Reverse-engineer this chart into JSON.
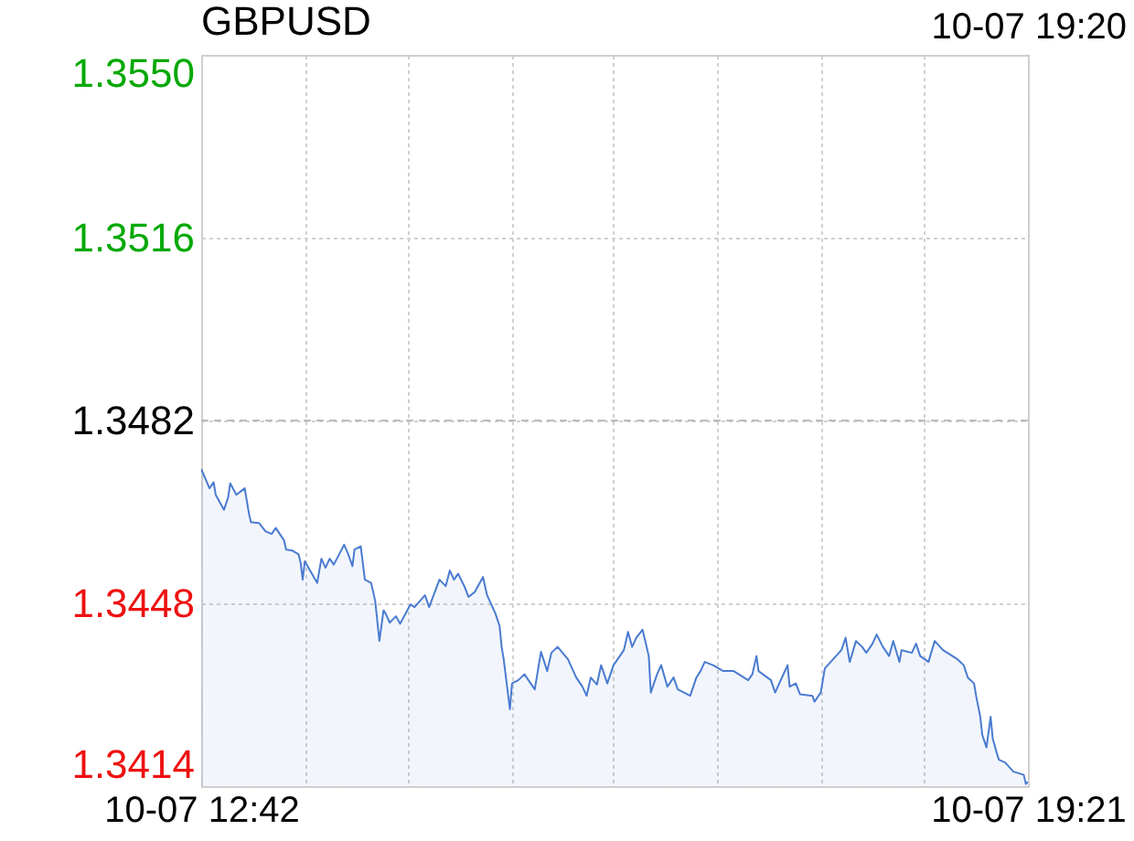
{
  "chart_data": {
    "type": "area",
    "title": "GBPUSD",
    "annotations": [
      "10-07 19:20"
    ],
    "x": [
      "--10-07T12:42",
      "--10-07T12:46",
      "--10-07T12:48",
      "--10-07T12:49",
      "--10-07T12:53",
      "--10-07T12:55",
      "--10-07T12:56",
      "--10-07T12:59",
      "--10-07T13:03",
      "--10-07T13:05",
      "--10-07T13:06",
      "--10-07T13:10",
      "--10-07T13:13",
      "--10-07T13:16",
      "--10-07T13:18",
      "--10-07T13:22",
      "--10-07T13:23",
      "--10-07T13:26",
      "--10-07T13:29",
      "--10-07T13:30",
      "--10-07T13:31",
      "--10-07T13:32",
      "--10-07T13:38",
      "--10-07T13:40",
      "--10-07T13:42",
      "--10-07T13:44",
      "--10-07T13:46",
      "--10-07T13:51",
      "--10-07T13:53",
      "--10-07T13:55",
      "--10-07T13:56",
      "--10-07T13:59",
      "--10-07T14:01",
      "--10-07T14:04",
      "--10-07T14:06",
      "--10-07T14:08",
      "--10-07T14:10",
      "--10-07T14:11",
      "--10-07T14:13",
      "--10-07T14:16",
      "--10-07T14:18",
      "--10-07T14:23",
      "--10-07T14:25",
      "--10-07T14:30",
      "--10-07T14:32",
      "--10-07T14:37",
      "--10-07T14:40",
      "--10-07T14:42",
      "--10-07T14:44",
      "--10-07T14:46",
      "--10-07T14:49",
      "--10-07T14:51",
      "--10-07T14:54",
      "--10-07T14:58",
      "--10-07T15:00",
      "--10-07T15:02",
      "--10-07T15:04",
      "--10-07T15:06",
      "--10-07T15:07",
      "--10-07T15:08",
      "--10-07T15:11",
      "--10-07T15:12",
      "--10-07T15:15",
      "--10-07T15:18",
      "--10-07T15:23",
      "--10-07T15:26",
      "--10-07T15:29",
      "--10-07T15:31",
      "--10-07T15:34",
      "--10-07T15:39",
      "--10-07T15:43",
      "--10-07T15:46",
      "--10-07T15:48",
      "--10-07T15:50",
      "--10-07T15:53",
      "--10-07T15:55",
      "--10-07T15:58",
      "--10-07T16:01",
      "--10-07T16:03",
      "--10-07T16:06",
      "--10-07T16:08",
      "--10-07T16:10",
      "--10-07T16:12",
      "--10-07T16:15",
      "--10-07T16:17",
      "--10-07T16:18",
      "--10-07T16:19",
      "--10-07T16:22",
      "--10-07T16:24",
      "--10-07T16:27",
      "--10-07T16:30",
      "--10-07T16:32",
      "--10-07T16:38",
      "--10-07T16:41",
      "--10-07T16:43",
      "--10-07T16:45",
      "--10-07T16:49",
      "--10-07T16:54",
      "--10-07T16:59",
      "--10-07T17:06",
      "--10-07T17:08",
      "--10-07T17:10",
      "--10-07T17:11",
      "--10-07T17:17",
      "--10-07T17:19",
      "--10-07T17:25",
      "--10-07T17:26",
      "--10-07T17:29",
      "--10-07T17:31",
      "--10-07T17:37",
      "--10-07T17:38",
      "--10-07T17:41",
      "--10-07T17:43",
      "--10-07T17:47",
      "--10-07T17:51",
      "--10-07T17:53",
      "--10-07T17:55",
      "--10-07T17:58",
      "--10-07T18:01",
      "--10-07T18:03",
      "--10-07T18:06",
      "--10-07T18:08",
      "--10-07T18:11",
      "--10-07T18:14",
      "--10-07T18:16",
      "--10-07T18:19",
      "--10-07T18:20",
      "--10-07T18:25",
      "--10-07T18:27",
      "--10-07T18:29",
      "--10-07T18:33",
      "--10-07T18:36",
      "--10-07T18:40",
      "--10-07T18:47",
      "--10-07T18:50",
      "--10-07T18:52",
      "--10-07T18:55",
      "--10-07T18:56",
      "--10-07T18:58",
      "--10-07T18:59",
      "--10-07T19:01",
      "--10-07T19:03",
      "--10-07T19:04",
      "--10-07T19:06",
      "--10-07T19:07",
      "--10-07T19:10",
      "--10-07T19:14",
      "--10-07T19:19",
      "--10-07T19:20",
      "--10-07T19:21"
    ],
    "series": [
      {
        "color": "#4a7bd0",
        "values": [
          1.3473,
          1.34694,
          1.34705,
          1.34682,
          1.34654,
          1.34677,
          1.34703,
          1.34682,
          1.34694,
          1.34648,
          1.34631,
          1.34629,
          1.34614,
          1.34609,
          1.3462,
          1.34597,
          1.3458,
          1.34578,
          1.34571,
          1.34555,
          1.34524,
          1.34558,
          1.34518,
          1.34563,
          1.34546,
          1.34563,
          1.34552,
          1.34589,
          1.34571,
          1.34549,
          1.3458,
          1.34586,
          1.34524,
          1.34518,
          1.34484,
          1.3441,
          1.34467,
          1.34461,
          1.34444,
          1.34456,
          1.34442,
          1.34478,
          1.34473,
          1.34495,
          1.34473,
          1.34524,
          1.34512,
          1.34541,
          1.34524,
          1.34535,
          1.34512,
          1.34492,
          1.34501,
          1.34529,
          1.34495,
          1.34478,
          1.34461,
          1.34438,
          1.34399,
          1.34376,
          1.34283,
          1.34331,
          1.34337,
          1.34348,
          1.3432,
          1.3439,
          1.34354,
          1.34388,
          1.34399,
          1.34376,
          1.34342,
          1.34325,
          1.34308,
          1.34342,
          1.34329,
          1.34365,
          1.34331,
          1.34365,
          1.34376,
          1.34393,
          1.34427,
          1.34399,
          1.34416,
          1.34431,
          1.34399,
          1.34382,
          1.34314,
          1.34348,
          1.34365,
          1.34325,
          1.34342,
          1.3432,
          1.34308,
          1.34342,
          1.34354,
          1.34371,
          1.34365,
          1.34354,
          1.34354,
          1.34337,
          1.34348,
          1.34382,
          1.34354,
          1.34337,
          1.34314,
          1.34365,
          1.34325,
          1.34331,
          1.34311,
          1.34308,
          1.34297,
          1.34314,
          1.34359,
          1.34376,
          1.34393,
          1.34416,
          1.34371,
          1.3441,
          1.34399,
          1.34388,
          1.34405,
          1.34422,
          1.34399,
          1.34382,
          1.3441,
          1.34371,
          1.34393,
          1.34388,
          1.34405,
          1.34382,
          1.34371,
          1.3441,
          1.34393,
          1.34376,
          1.34365,
          1.34342,
          1.34331,
          1.34308,
          1.34269,
          1.34235,
          1.34212,
          1.34269,
          1.34229,
          1.34201,
          1.34189,
          1.34184,
          1.34167,
          1.34161,
          1.34144,
          1.34148
        ]
      }
    ],
    "xlim": [
      "--10-07T12:42",
      "--10-07T19:21"
    ],
    "xticks": [
      {
        "value": "--10-07T12:42",
        "label": "10-07 12:42"
      },
      {
        "value": "--10-07T13:32",
        "label": null
      },
      {
        "value": "--10-07T14:22",
        "label": null
      },
      {
        "value": "--10-07T15:12",
        "label": null
      },
      {
        "value": "--10-07T16:01",
        "label": null
      },
      {
        "value": "--10-07T16:51",
        "label": null
      },
      {
        "value": "--10-07T17:41",
        "label": null
      },
      {
        "value": "--10-07T18:31",
        "label": null
      },
      {
        "value": "--10-07T19:21",
        "label": "10-07 19:21"
      }
    ],
    "ylim": [
      1.3414,
      1.355
    ],
    "yticks": [
      1.3414,
      1.3448,
      1.3482,
      1.3516,
      {
        "value": 1.355,
        "label": "1.3550"
      }
    ],
    "ref_lines": [
      {
        "axis": "y",
        "value": 1.3482,
        "color": "#bbbbbb",
        "line_style": "dashed"
      }
    ],
    "grid": true
  }
}
